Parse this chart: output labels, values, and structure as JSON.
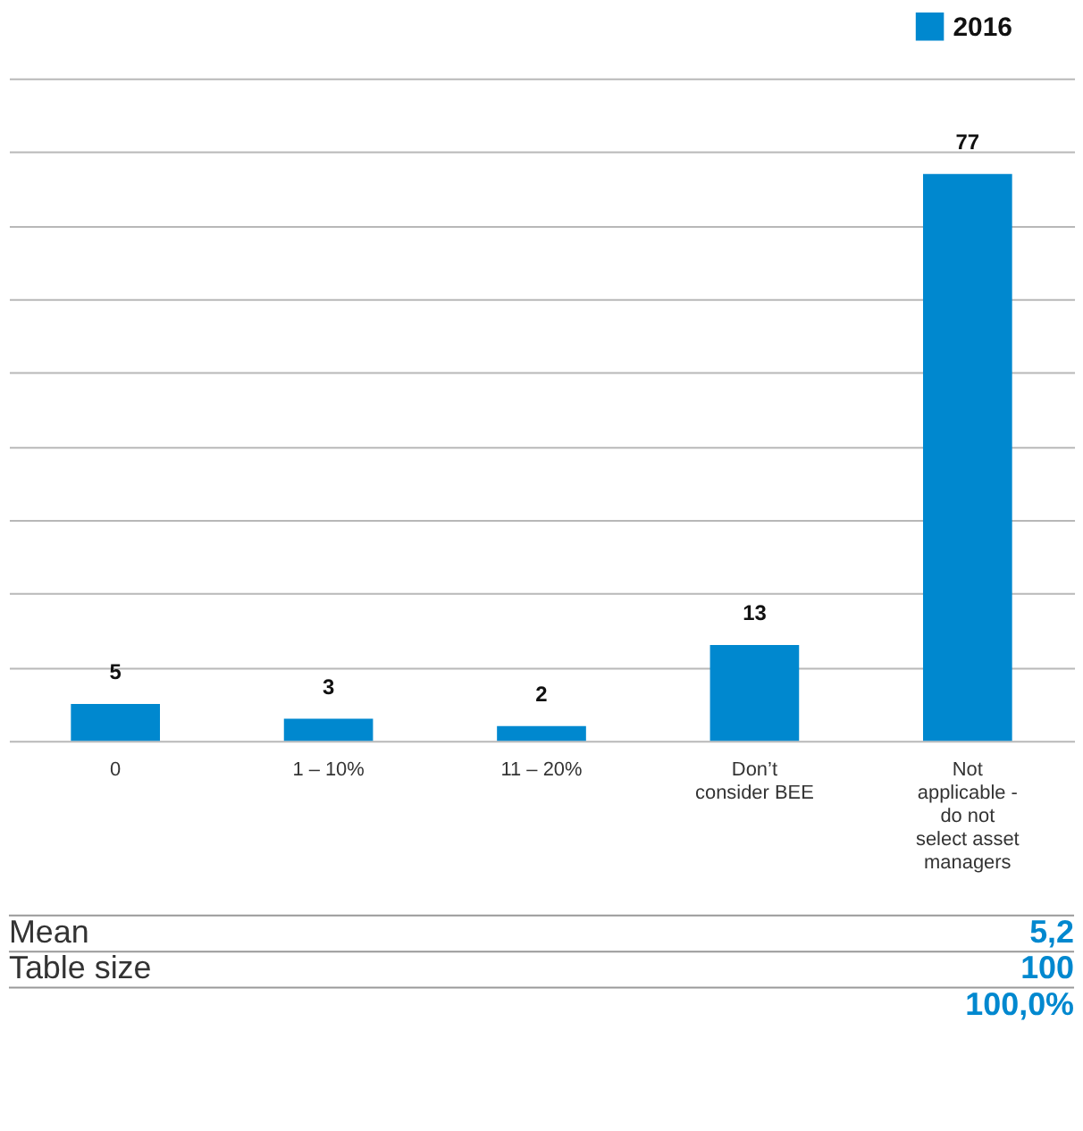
{
  "chart_data": {
    "type": "bar",
    "categories": [
      "0",
      "1 – 10%",
      "11 – 20%",
      "Don’t consider BEE",
      "Not applicable - do not select asset managers"
    ],
    "series": [
      {
        "name": "2016",
        "color": "#0088cf",
        "values": [
          5,
          3,
          2,
          13,
          77
        ]
      }
    ],
    "ylim": [
      0,
      90
    ],
    "yticks": [
      {
        "value": 0,
        "label": null
      },
      {
        "value": 10,
        "label": null
      },
      {
        "value": 20,
        "label": null
      },
      {
        "value": 30,
        "label": null
      },
      {
        "value": 40,
        "label": null
      },
      {
        "value": 50,
        "label": null
      },
      {
        "value": 60,
        "label": null
      },
      {
        "value": 70,
        "label": null
      },
      {
        "value": 80,
        "label": null
      },
      {
        "value": 90,
        "label": null
      }
    ],
    "grid": "y",
    "tick_labels": "x",
    "data_labels": true,
    "legend": "top right",
    "annotations": [
      "Mean",
      "5,2",
      "Table size",
      "100",
      "100,0%"
    ]
  }
}
